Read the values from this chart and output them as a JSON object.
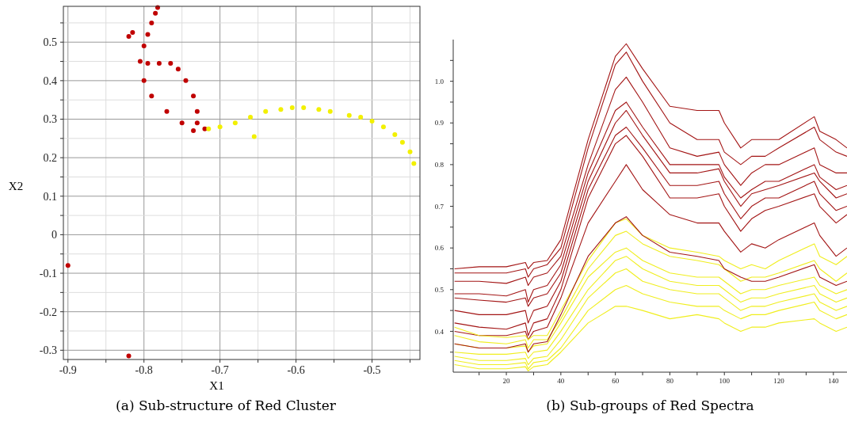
{
  "chart_data": [
    {
      "type": "scatter",
      "title": "(a) Sub-structure of Red Cluster",
      "xlabel": "X1",
      "ylabel": "X2",
      "xlim": [
        -0.906,
        -0.437
      ],
      "ylim": [
        -0.324,
        0.593
      ],
      "xticks": [
        -0.9,
        {
          "value": -0.85,
          "label": null
        },
        -0.8,
        {
          "value": -0.75,
          "label": null
        },
        -0.7,
        {
          "value": -0.65,
          "label": null
        },
        -0.6,
        {
          "value": -0.55,
          "label": null
        },
        -0.5,
        {
          "value": -0.45,
          "label": null
        }
      ],
      "yticks": [
        -0.3,
        {
          "value": -0.25,
          "label": null
        },
        -0.2,
        {
          "value": -0.15,
          "label": null
        },
        -0.1,
        {
          "value": -0.05,
          "label": null
        },
        0,
        {
          "value": 0.05,
          "label": null
        },
        0.1,
        {
          "value": 0.15,
          "label": null
        },
        0.2,
        {
          "value": 0.25,
          "label": null
        },
        0.3,
        {
          "value": 0.35,
          "label": null
        },
        0.4,
        {
          "value": 0.45,
          "label": null
        },
        0.5,
        {
          "value": 0.55,
          "label": null
        }
      ],
      "grid": true,
      "marker": "circle",
      "series": [
        {
          "color": "#c00000",
          "x": [
            -0.72,
            -0.735,
            -0.75,
            -0.77,
            -0.79,
            -0.8,
            -0.805,
            -0.8,
            -0.795,
            -0.79,
            -0.785,
            -0.782,
            -0.82,
            -0.815,
            -0.795,
            -0.78,
            -0.765,
            -0.755,
            -0.745,
            -0.735,
            -0.73,
            -0.73,
            -0.9,
            -0.82
          ],
          "values": [
            0.275,
            0.27,
            0.29,
            0.32,
            0.36,
            0.4,
            0.45,
            0.49,
            0.52,
            0.55,
            0.575,
            0.59,
            0.515,
            0.525,
            0.445,
            0.445,
            0.445,
            0.43,
            0.4,
            0.36,
            0.32,
            0.29,
            -0.08,
            -0.315
          ]
        },
        {
          "color": "#f2f000",
          "x": [
            -0.715,
            -0.7,
            -0.68,
            -0.66,
            -0.64,
            -0.62,
            -0.605,
            -0.59,
            -0.57,
            -0.555,
            -0.53,
            -0.515,
            -0.5,
            -0.485,
            -0.47,
            -0.46,
            -0.45,
            -0.445,
            -0.655
          ],
          "values": [
            0.275,
            0.28,
            0.29,
            0.305,
            0.32,
            0.325,
            0.33,
            0.33,
            0.325,
            0.32,
            0.31,
            0.305,
            0.295,
            0.28,
            0.26,
            0.24,
            0.215,
            0.185,
            0.255
          ]
        }
      ]
    },
    {
      "type": "line",
      "title": "(b) Sub-groups of Red Spectra",
      "xlim": [
        0.5,
        145
      ],
      "ylim": [
        0.302,
        1.1
      ],
      "xticks": [
        {
          "value": 10,
          "label": null
        },
        20,
        {
          "value": 30,
          "label": null
        },
        40,
        {
          "value": 50,
          "label": null
        },
        60,
        {
          "value": 70,
          "label": null
        },
        80,
        {
          "value": 90,
          "label": null
        },
        100,
        {
          "value": 110,
          "label": null
        },
        120,
        {
          "value": 130,
          "label": null
        },
        140
      ],
      "yticks": [
        {
          "value": 0.35,
          "label": null
        },
        {
          "value": 0.4,
          "label": "0.4"
        },
        {
          "value": 0.45,
          "label": null
        },
        {
          "value": 0.5,
          "label": "0.5"
        },
        {
          "value": 0.55,
          "label": null
        },
        {
          "value": 0.6,
          "label": "0.6"
        },
        {
          "value": 0.65,
          "label": null
        },
        {
          "value": 0.7,
          "label": "0.7"
        },
        {
          "value": 0.75,
          "label": null
        },
        {
          "value": 0.8,
          "label": "0.8"
        },
        {
          "value": 0.85,
          "label": null
        },
        {
          "value": 0.9,
          "label": "0.9"
        },
        {
          "value": 0.95,
          "label": null
        },
        {
          "value": 1.0,
          "label": "1.0"
        },
        {
          "value": 1.05,
          "label": null
        }
      ],
      "grid": false,
      "x": [
        1,
        10,
        20,
        27,
        28,
        30,
        35,
        40,
        50,
        60,
        64,
        70,
        80,
        90,
        98,
        100,
        106,
        110,
        115,
        120,
        133,
        135,
        141,
        145
      ],
      "series": [
        {
          "color": "#a31515",
          "values": [
            0.55,
            0.555,
            0.555,
            0.565,
            0.55,
            0.565,
            0.57,
            0.62,
            0.86,
            1.06,
            1.09,
            1.03,
            0.94,
            0.93,
            0.93,
            0.9,
            0.84,
            0.86,
            0.86,
            0.86,
            0.915,
            0.88,
            0.86,
            0.84
          ]
        },
        {
          "color": "#a31515",
          "values": [
            0.54,
            0.54,
            0.54,
            0.55,
            0.53,
            0.55,
            0.56,
            0.6,
            0.84,
            1.04,
            1.07,
            1.0,
            0.9,
            0.86,
            0.86,
            0.83,
            0.8,
            0.82,
            0.82,
            0.84,
            0.89,
            0.86,
            0.83,
            0.82
          ]
        },
        {
          "color": "#a31515",
          "values": [
            0.52,
            0.52,
            0.515,
            0.53,
            0.51,
            0.53,
            0.54,
            0.58,
            0.8,
            0.98,
            1.01,
            0.95,
            0.84,
            0.82,
            0.83,
            0.8,
            0.75,
            0.78,
            0.8,
            0.8,
            0.84,
            0.8,
            0.78,
            0.78
          ]
        },
        {
          "color": "#a31515",
          "values": [
            0.49,
            0.49,
            0.485,
            0.5,
            0.47,
            0.5,
            0.51,
            0.56,
            0.78,
            0.93,
            0.95,
            0.89,
            0.8,
            0.8,
            0.8,
            0.77,
            0.72,
            0.74,
            0.76,
            0.76,
            0.8,
            0.77,
            0.74,
            0.75
          ]
        },
        {
          "color": "#a31515",
          "values": [
            0.48,
            0.475,
            0.47,
            0.48,
            0.46,
            0.48,
            0.49,
            0.54,
            0.76,
            0.9,
            0.93,
            0.87,
            0.78,
            0.78,
            0.79,
            0.76,
            0.7,
            0.73,
            0.74,
            0.75,
            0.78,
            0.76,
            0.72,
            0.73
          ]
        },
        {
          "color": "#a31515",
          "values": [
            0.45,
            0.44,
            0.44,
            0.45,
            0.42,
            0.45,
            0.46,
            0.52,
            0.74,
            0.87,
            0.89,
            0.84,
            0.75,
            0.75,
            0.76,
            0.73,
            0.67,
            0.7,
            0.72,
            0.72,
            0.76,
            0.73,
            0.69,
            0.7
          ]
        },
        {
          "color": "#a31515",
          "values": [
            0.42,
            0.41,
            0.405,
            0.42,
            0.39,
            0.42,
            0.43,
            0.5,
            0.72,
            0.85,
            0.87,
            0.82,
            0.72,
            0.72,
            0.73,
            0.7,
            0.64,
            0.67,
            0.69,
            0.7,
            0.73,
            0.7,
            0.66,
            0.68
          ]
        },
        {
          "color": "#a31515",
          "values": [
            0.4,
            0.39,
            0.39,
            0.4,
            0.38,
            0.4,
            0.41,
            0.48,
            0.66,
            0.76,
            0.8,
            0.74,
            0.68,
            0.66,
            0.66,
            0.64,
            0.59,
            0.61,
            0.6,
            0.62,
            0.66,
            0.63,
            0.58,
            0.6
          ]
        },
        {
          "color": "#f0ee1e",
          "values": [
            0.41,
            0.39,
            0.385,
            0.39,
            0.38,
            0.39,
            0.39,
            0.45,
            0.57,
            0.66,
            0.67,
            0.63,
            0.6,
            0.59,
            0.58,
            0.57,
            0.55,
            0.56,
            0.55,
            0.57,
            0.61,
            0.58,
            0.56,
            0.58
          ]
        },
        {
          "color": "#f0ee1e",
          "values": [
            0.39,
            0.375,
            0.37,
            0.38,
            0.36,
            0.38,
            0.38,
            0.43,
            0.55,
            0.63,
            0.64,
            0.61,
            0.58,
            0.57,
            0.56,
            0.55,
            0.52,
            0.53,
            0.53,
            0.54,
            0.57,
            0.55,
            0.52,
            0.54
          ]
        },
        {
          "color": "#f0ee1e",
          "values": [
            0.37,
            0.36,
            0.36,
            0.365,
            0.35,
            0.365,
            0.37,
            0.42,
            0.53,
            0.59,
            0.6,
            0.57,
            0.54,
            0.53,
            0.53,
            0.52,
            0.49,
            0.5,
            0.5,
            0.51,
            0.53,
            0.51,
            0.49,
            0.5
          ]
        },
        {
          "color": "#f0ee1e",
          "values": [
            0.35,
            0.345,
            0.345,
            0.35,
            0.335,
            0.35,
            0.355,
            0.4,
            0.5,
            0.57,
            0.58,
            0.55,
            0.52,
            0.51,
            0.51,
            0.5,
            0.47,
            0.48,
            0.48,
            0.49,
            0.51,
            0.49,
            0.47,
            0.48
          ]
        },
        {
          "color": "#f0ee1e",
          "values": [
            0.34,
            0.33,
            0.33,
            0.335,
            0.32,
            0.335,
            0.34,
            0.38,
            0.48,
            0.54,
            0.55,
            0.52,
            0.5,
            0.49,
            0.49,
            0.48,
            0.45,
            0.46,
            0.46,
            0.47,
            0.49,
            0.47,
            0.45,
            0.46
          ]
        },
        {
          "color": "#f0ee1e",
          "values": [
            0.33,
            0.32,
            0.32,
            0.325,
            0.31,
            0.325,
            0.33,
            0.36,
            0.45,
            0.5,
            0.51,
            0.49,
            0.47,
            0.46,
            0.46,
            0.45,
            0.43,
            0.44,
            0.44,
            0.45,
            0.47,
            0.45,
            0.43,
            0.44
          ]
        },
        {
          "color": "#f0ee1e",
          "values": [
            0.32,
            0.31,
            0.31,
            0.315,
            0.305,
            0.315,
            0.32,
            0.35,
            0.42,
            0.46,
            0.46,
            0.45,
            0.43,
            0.44,
            0.43,
            0.42,
            0.4,
            0.41,
            0.41,
            0.42,
            0.43,
            0.42,
            0.4,
            0.41
          ]
        },
        {
          "color": "#a31515",
          "values": [
            0.37,
            0.36,
            0.36,
            0.37,
            0.35,
            0.37,
            0.375,
            0.44,
            0.58,
            0.66,
            0.675,
            0.63,
            0.59,
            0.58,
            0.57,
            0.55,
            0.53,
            0.52,
            0.52,
            0.53,
            0.56,
            0.53,
            0.51,
            0.52
          ]
        }
      ]
    }
  ]
}
